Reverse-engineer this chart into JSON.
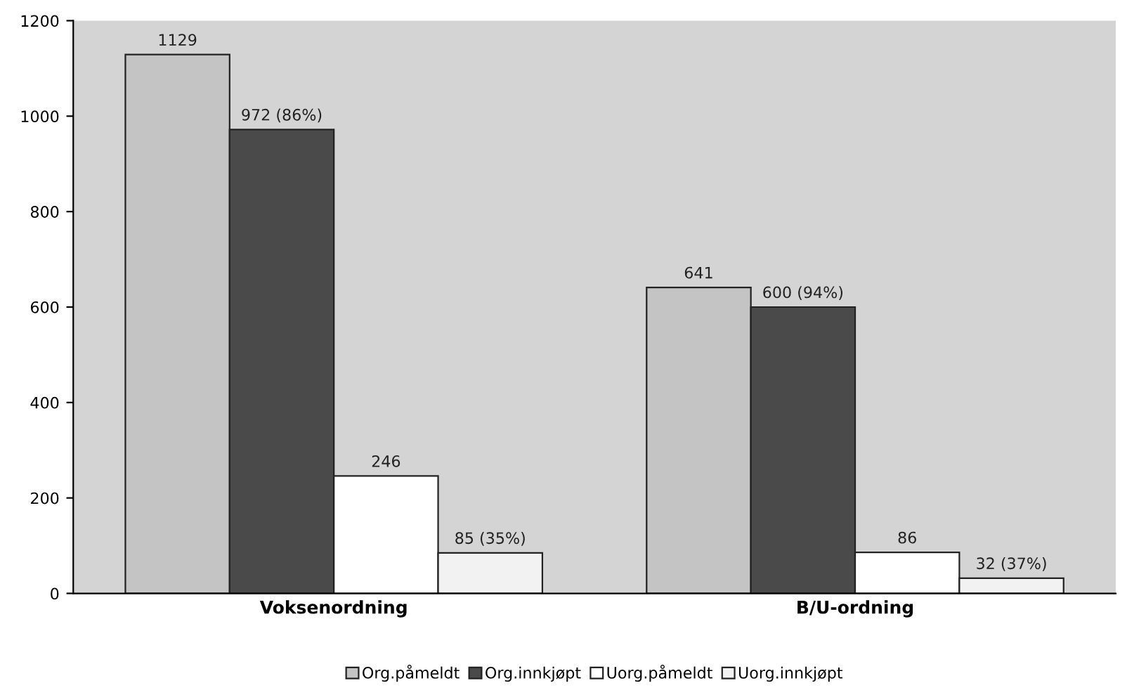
{
  "chart_data": {
    "type": "bar",
    "categories": [
      "Voksenordning",
      "B/U-ordning"
    ],
    "series": [
      {
        "name": "Org.påmeldt",
        "color": "#c4c4c4",
        "values": [
          1129,
          641
        ],
        "value_labels": [
          "1129",
          "641"
        ]
      },
      {
        "name": "Org.innkjøpt",
        "color": "#4a4a4a",
        "values": [
          972,
          600
        ],
        "value_labels": [
          "972 (86%)",
          "600 (94%)"
        ]
      },
      {
        "name": "Uorg.påmeldt",
        "color": "#ffffff",
        "values": [
          246,
          86
        ],
        "value_labels": [
          "246",
          "86"
        ]
      },
      {
        "name": "Uorg.innkjøpt",
        "color": "#f2f2f2",
        "values": [
          85,
          32
        ],
        "value_labels": [
          "85 (35%)",
          "32 (37%)"
        ]
      }
    ],
    "ylim": [
      0,
      1200
    ],
    "yticks": [
      0,
      200,
      400,
      600,
      800,
      1000,
      1200
    ],
    "grid": false,
    "legend": "bottom"
  }
}
